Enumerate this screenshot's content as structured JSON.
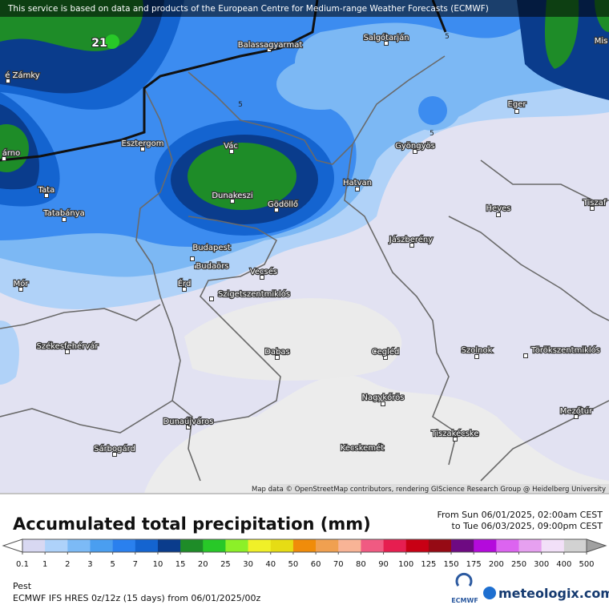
{
  "banner": "This service is based on data and products of the European Centre for Medium-range Weather Forecasts (ECMWF)",
  "map": {
    "places": [
      "é Zámky",
      "Balassagyarmat",
      "Salgótarján",
      "Mis",
      "Eger",
      "Esztergom",
      "Vác",
      "Gyöngyös",
      "árno",
      "Tata",
      "Dunakeszi",
      "Gödöllő",
      "Hatvan",
      "Heves",
      "Tiszaf",
      "Tatabánya",
      "Jászberény",
      "Budapest",
      "Budaörs",
      "Vecsés",
      "Mór",
      "Érd",
      "Szigetszentmiklós",
      "Székesfehérvár",
      "Dabas",
      "Cegléd",
      "Szolnok",
      "Törökszentmiklós",
      "Nagykőrös",
      "Mezőtúr",
      "Dunaújváros",
      "Tiszakécske",
      "Sárbogárd",
      "Kecskemét"
    ],
    "contour_labels": [
      21,
      5,
      5,
      5
    ],
    "attribution": "Map data © OpenStreetMap contributors, rendering GIScience Research Group @ Heidelberg University"
  },
  "legend": {
    "title": "Accumulated total precipitation (mm)",
    "period": [
      "From Sun 06/01/2025, 02:00am CEST",
      "to Tue 06/03/2025, 09:00pm CEST"
    ],
    "colors": [
      "#ffffff",
      "#d8d8f2",
      "#aed2fa",
      "#7cbaf6",
      "#4a9ef0",
      "#2a80ee",
      "#1464d0",
      "#0a3c8c",
      "#1e8c28",
      "#28c828",
      "#8cf028",
      "#f0f028",
      "#e6dc14",
      "#f08c0a",
      "#f0a050",
      "#f8b496",
      "#f05a82",
      "#e61e50",
      "#c80014",
      "#960a14",
      "#6e0a82",
      "#b40adc",
      "#dc64f0",
      "#e6a0f0",
      "#f2e0f8",
      "#d2d2d2",
      "#a0a0a0"
    ],
    "labels": [
      0.1,
      1,
      2,
      3,
      5,
      7,
      10,
      15,
      20,
      25,
      30,
      40,
      50,
      60,
      70,
      80,
      90,
      100,
      125,
      150,
      175,
      200,
      250,
      300,
      400,
      500
    ]
  },
  "footer": {
    "location": "Pest",
    "model": "ECMWF IFS HRES 0z/12z (15 days) from  06/01/2025/00z",
    "logos": [
      "ECMWF",
      "meteologix.com"
    ]
  }
}
